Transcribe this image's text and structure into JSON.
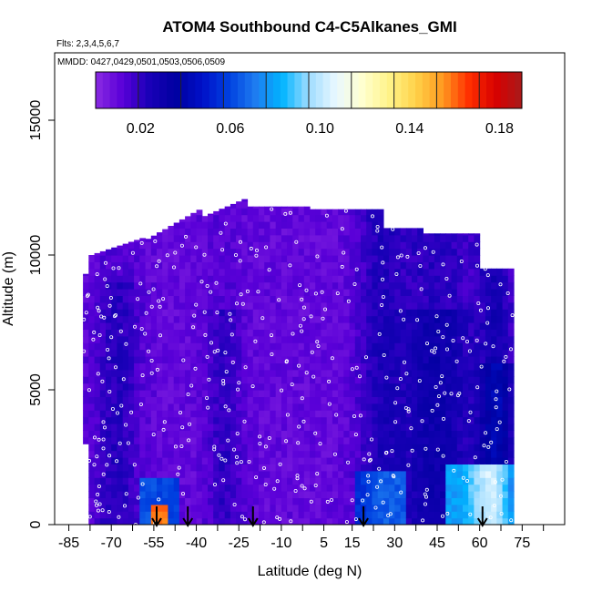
{
  "chart_data": {
    "type": "heatmap",
    "title": "ATOM4 Southbound C4-C5Alkanes_GMI",
    "flights_note": "Flts: 2,3,4,5,6,7",
    "dates_note": "MMDD: 0427,0429,0501,0503,0506,0509",
    "xlabel": "Latitude (deg N)",
    "ylabel": "Altitude (m)",
    "xlim": [
      -90,
      90
    ],
    "ylim": [
      0,
      17500
    ],
    "x_ticks": [
      -85,
      -70,
      -55,
      -40,
      -25,
      -10,
      5,
      15,
      30,
      45,
      60,
      75
    ],
    "y_ticks": [
      0,
      5000,
      10000,
      15000
    ],
    "colorbar": {
      "range": [
        0,
        0.19
      ],
      "tick_values": [
        0.02,
        0.06,
        0.1,
        0.14,
        0.18
      ],
      "tick_labels": [
        "0.02",
        "0.06",
        "0.10",
        "0.14",
        "0.18"
      ],
      "colors": [
        "#8a2be2",
        "#5a00d8",
        "#1a00b8",
        "#0000a0",
        "#0010c8",
        "#0040e0",
        "#1e7cf0",
        "#00b4ff",
        "#9fdcff",
        "#e8f8ff",
        "#ffffd0",
        "#fff48a",
        "#ffd24a",
        "#ff9a20",
        "#ff3000",
        "#d80000",
        "#a81a1a"
      ]
    },
    "flight_arrows_lat": [
      -54,
      -43,
      -20,
      19,
      61
    ],
    "grid": false
  }
}
